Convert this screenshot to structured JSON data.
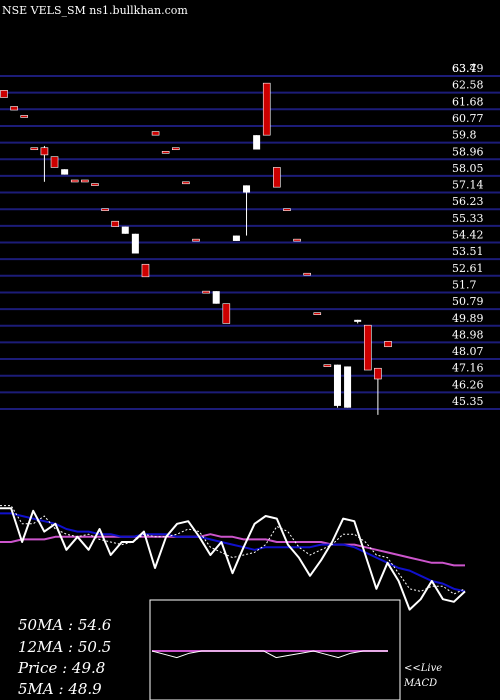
{
  "header": {
    "title": "NSE VELS_SM ns1.bullkhan.com"
  },
  "colors": {
    "background": "#000000",
    "grid": "#1c1c78",
    "up_candle": "#ffffff",
    "down_candle": "#cc0000",
    "price_line": "#ffffff",
    "ma_slow": "#1010cc",
    "ma_long": "#cc55cc",
    "ma_fast": "#ffffff"
  },
  "chart_data": [
    {
      "type": "candlestick",
      "ylim": [
        45.35,
        63.7
      ],
      "grid": true,
      "price_levels": [
        "63.7",
        "63.49",
        "62.58",
        "61.68",
        "60.77",
        "59.8",
        "58.96",
        "58.05",
        "57.14",
        "56.23",
        "55.33",
        "54.42",
        "53.51",
        "52.61",
        "51.7",
        "50.79",
        "49.89",
        "48.98",
        "48.07",
        "47.16",
        "46.26",
        "45.35"
      ],
      "candles": [
        {
          "o": 62.9,
          "h": 62.9,
          "l": 62.5,
          "c": 62.5
        },
        {
          "o": 62.0,
          "h": 62.0,
          "l": 61.8,
          "c": 61.8
        },
        {
          "o": 61.5,
          "h": 61.5,
          "l": 61.4,
          "c": 61.4
        },
        {
          "o": 59.7,
          "h": 59.7,
          "l": 59.6,
          "c": 59.6
        },
        {
          "o": 59.7,
          "h": 59.8,
          "l": 57.8,
          "c": 59.3
        },
        {
          "o": 59.2,
          "h": 59.2,
          "l": 58.6,
          "c": 58.6
        },
        {
          "o": 58.2,
          "h": 58.5,
          "l": 58.2,
          "c": 58.5
        },
        {
          "o": 57.9,
          "h": 57.9,
          "l": 57.8,
          "c": 57.8
        },
        {
          "o": 57.9,
          "h": 57.9,
          "l": 57.8,
          "c": 57.8
        },
        {
          "o": 57.7,
          "h": 57.7,
          "l": 57.6,
          "c": 57.6
        },
        {
          "o": 56.3,
          "h": 56.3,
          "l": 56.2,
          "c": 56.2
        },
        {
          "o": 55.6,
          "h": 55.6,
          "l": 55.3,
          "c": 55.3
        },
        {
          "o": 54.9,
          "h": 55.3,
          "l": 54.9,
          "c": 55.3
        },
        {
          "o": 53.8,
          "h": 54.9,
          "l": 53.8,
          "c": 54.9
        },
        {
          "o": 53.2,
          "h": 53.2,
          "l": 52.5,
          "c": 52.5
        },
        {
          "o": 60.6,
          "h": 60.6,
          "l": 60.4,
          "c": 60.4
        },
        {
          "o": 59.5,
          "h": 59.5,
          "l": 59.4,
          "c": 59.4
        },
        {
          "o": 59.7,
          "h": 59.7,
          "l": 59.6,
          "c": 59.6
        },
        {
          "o": 57.8,
          "h": 57.8,
          "l": 57.7,
          "c": 57.7
        },
        {
          "o": 54.6,
          "h": 54.6,
          "l": 54.5,
          "c": 54.5
        },
        {
          "o": 51.7,
          "h": 51.7,
          "l": 51.6,
          "c": 51.6
        },
        {
          "o": 51.0,
          "h": 51.7,
          "l": 51.0,
          "c": 51.7
        },
        {
          "o": 51.0,
          "h": 51.0,
          "l": 49.9,
          "c": 49.9
        },
        {
          "o": 54.5,
          "h": 54.8,
          "l": 54.5,
          "c": 54.8
        },
        {
          "o": 57.2,
          "h": 57.6,
          "l": 54.8,
          "c": 57.6
        },
        {
          "o": 59.6,
          "h": 60.4,
          "l": 59.6,
          "c": 60.4
        },
        {
          "o": 63.3,
          "h": 63.3,
          "l": 60.4,
          "c": 60.4
        },
        {
          "o": 58.6,
          "h": 58.6,
          "l": 57.5,
          "c": 57.5
        },
        {
          "o": 56.3,
          "h": 56.3,
          "l": 56.2,
          "c": 56.2
        },
        {
          "o": 54.6,
          "h": 54.6,
          "l": 54.5,
          "c": 54.5
        },
        {
          "o": 52.7,
          "h": 52.7,
          "l": 52.6,
          "c": 52.6
        },
        {
          "o": 50.5,
          "h": 50.5,
          "l": 50.4,
          "c": 50.4
        },
        {
          "o": 47.6,
          "h": 47.6,
          "l": 47.5,
          "c": 47.5
        },
        {
          "o": 45.3,
          "h": 47.6,
          "l": 45.2,
          "c": 47.6
        },
        {
          "o": 45.2,
          "h": 47.5,
          "l": 45.2,
          "c": 47.5
        },
        {
          "o": 50.0,
          "h": 50.1,
          "l": 49.9,
          "c": 50.1
        },
        {
          "o": 49.8,
          "h": 49.8,
          "l": 47.3,
          "c": 47.3
        },
        {
          "o": 47.4,
          "h": 47.4,
          "l": 44.8,
          "c": 46.8
        },
        {
          "o": 48.9,
          "h": 48.9,
          "l": 48.6,
          "c": 48.6
        }
      ]
    },
    {
      "type": "line",
      "series": [
        {
          "key": "price",
          "color": "#ffffff",
          "width": 2,
          "values": [
            49.8,
            49.8,
            48.5,
            49.7,
            48.9,
            49.2,
            48.2,
            48.7,
            48.2,
            49.0,
            48.0,
            48.5,
            48.5,
            48.9,
            47.5,
            48.7,
            49.2,
            49.3,
            48.7,
            48.0,
            48.5,
            47.3,
            48.3,
            49.2,
            49.5,
            49.4,
            48.4,
            47.9,
            47.2,
            47.8,
            48.5,
            49.4,
            49.3,
            48.0,
            46.7,
            47.7,
            47.0,
            45.9,
            46.3,
            47.0,
            46.3,
            46.2,
            46.6
          ]
        },
        {
          "key": "ma_fast",
          "color": "#ffffff",
          "width": 1,
          "dotted": true,
          "values": [
            49.9,
            49.9,
            49.2,
            49.2,
            49.5,
            49.0,
            48.8,
            48.7,
            48.8,
            48.6,
            48.5,
            48.4,
            48.5,
            48.8,
            48.7,
            48.7,
            48.8,
            49.0,
            48.9,
            48.3,
            48.1,
            47.9,
            48.0,
            48.1,
            48.4,
            49.1,
            48.9,
            48.3,
            48.0,
            48.2,
            48.4,
            48.8,
            48.8,
            48.5,
            48.0,
            47.9,
            47.3,
            46.7,
            46.6,
            46.8,
            46.8,
            46.5,
            46.7
          ]
        },
        {
          "key": "ma_slow",
          "color": "#1010cc",
          "width": 2,
          "values": [
            49.6,
            49.6,
            49.5,
            49.4,
            49.3,
            49.2,
            49.0,
            48.9,
            48.9,
            48.8,
            48.8,
            48.7,
            48.7,
            48.8,
            48.8,
            48.8,
            48.7,
            48.7,
            48.7,
            48.6,
            48.5,
            48.4,
            48.3,
            48.2,
            48.3,
            48.3,
            48.3,
            48.3,
            48.3,
            48.4,
            48.4,
            48.4,
            48.3,
            48.1,
            47.9,
            47.7,
            47.5,
            47.4,
            47.2,
            47.0,
            46.9,
            46.7,
            46.6
          ]
        },
        {
          "key": "ma_long",
          "color": "#cc55cc",
          "width": 2,
          "values": [
            48.5,
            48.5,
            48.6,
            48.6,
            48.6,
            48.7,
            48.7,
            48.7,
            48.7,
            48.7,
            48.7,
            48.7,
            48.7,
            48.7,
            48.7,
            48.7,
            48.7,
            48.7,
            48.7,
            48.8,
            48.7,
            48.7,
            48.6,
            48.6,
            48.6,
            48.5,
            48.5,
            48.5,
            48.5,
            48.5,
            48.4,
            48.4,
            48.4,
            48.3,
            48.2,
            48.1,
            48.0,
            47.9,
            47.8,
            47.7,
            47.7,
            47.6,
            47.6
          ]
        }
      ]
    },
    {
      "type": "line",
      "series": [
        {
          "key": "macd",
          "color": "#ffffff",
          "width": 1,
          "values": [
            0.0,
            -0.3,
            -0.6,
            -0.2,
            0.0,
            0.0,
            0.0,
            0.0,
            0.0,
            0.0,
            -0.6,
            -0.4,
            -0.2,
            0.0,
            -0.3,
            -0.6,
            -0.2,
            0.0,
            0.0,
            0.0
          ]
        },
        {
          "key": "signal",
          "color": "#cc55cc",
          "width": 2,
          "values": [
            0.0,
            0.0,
            0.0,
            0.0,
            0.0,
            0.0,
            0.0,
            0.0,
            0.0,
            0.0,
            0.0,
            0.0,
            0.0,
            0.0,
            0.0,
            0.0,
            0.0,
            0.0,
            0.0,
            0.0
          ]
        }
      ]
    }
  ],
  "stats": {
    "ma50": "50MA : 54.6",
    "ma12": "12MA : 50.5",
    "price": "Price   : 49.8",
    "ma5": "5MA : 48.9"
  },
  "macd_label": {
    "live": "<<Live",
    "name": "MACD"
  }
}
